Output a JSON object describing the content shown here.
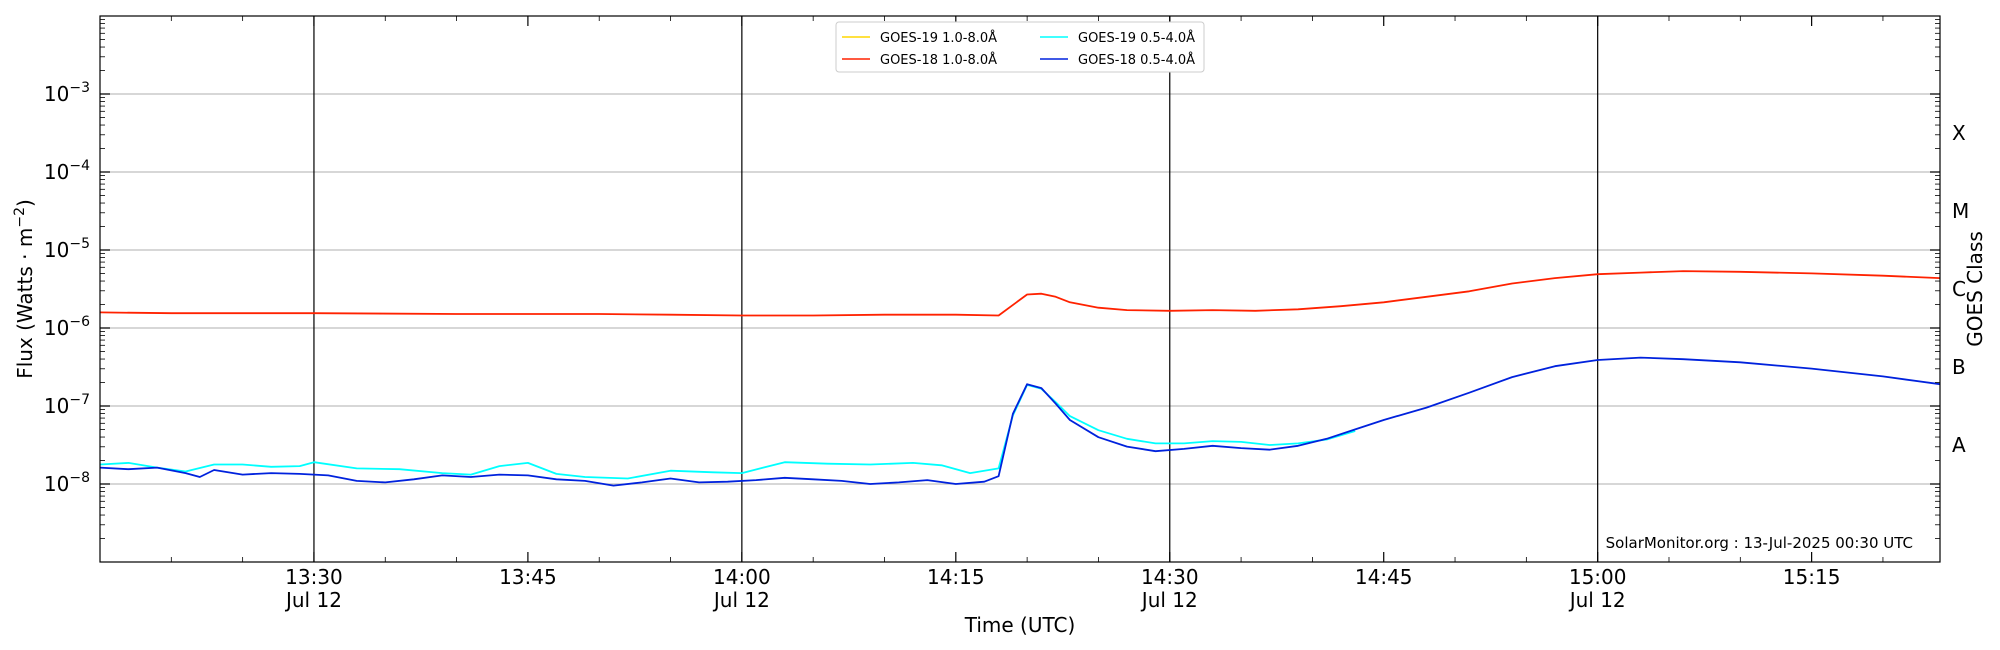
{
  "chart_data": {
    "type": "line",
    "xlabel": "Time (UTC)",
    "ylabel": "Flux (Watts · m",
    "ylabel_sup": "−2",
    "ylabel_close": ")",
    "right_label": "GOES Class",
    "xlim": [
      "13:15",
      "15:24"
    ],
    "ylim_log10": [
      -9,
      -2
    ],
    "yscale": "log",
    "yticks": [
      {
        "exp": -8,
        "base": "10",
        "sup": "−8"
      },
      {
        "exp": -7,
        "base": "10",
        "sup": "−7"
      },
      {
        "exp": -6,
        "base": "10",
        "sup": "−6"
      },
      {
        "exp": -5,
        "base": "10",
        "sup": "−5"
      },
      {
        "exp": -4,
        "base": "10",
        "sup": "−4"
      },
      {
        "exp": -3,
        "base": "10",
        "sup": "−3"
      }
    ],
    "xticks": [
      {
        "time": "13:30",
        "label": "13:30",
        "date": "Jul 12",
        "vline": true
      },
      {
        "time": "13:45",
        "label": "13:45",
        "date": "",
        "vline": false
      },
      {
        "time": "14:00",
        "label": "14:00",
        "date": "Jul 12",
        "vline": true
      },
      {
        "time": "14:15",
        "label": "14:15",
        "date": "",
        "vline": false
      },
      {
        "time": "14:30",
        "label": "14:30",
        "date": "Jul 12",
        "vline": true
      },
      {
        "time": "14:45",
        "label": "14:45",
        "date": "",
        "vline": false
      },
      {
        "time": "15:00",
        "label": "15:00",
        "date": "Jul 12",
        "vline": true
      },
      {
        "time": "15:15",
        "label": "15:15",
        "date": "",
        "vline": false
      }
    ],
    "class_labels": [
      {
        "label": "A",
        "exp": -7.5
      },
      {
        "label": "B",
        "exp": -6.5
      },
      {
        "label": "C",
        "exp": -5.5
      },
      {
        "label": "M",
        "exp": -4.5
      },
      {
        "label": "X",
        "exp": -3.5
      }
    ],
    "grid": "horizontal at decades",
    "legend_position": "top-center",
    "legend": [
      {
        "name": "GOES-19 1.0-8.0Å",
        "color": "#ffd700"
      },
      {
        "name": "GOES-19 0.5-4.0Å",
        "color": "#00ffff"
      },
      {
        "name": "GOES-18 1.0-8.0Å",
        "color": "#ff2200"
      },
      {
        "name": "GOES-18 0.5-4.0Å",
        "color": "#0022dd"
      }
    ],
    "series": [
      {
        "name": "GOES-19 1.0-8.0Å",
        "color": "#ffd700",
        "points": []
      },
      {
        "name": "GOES-19 0.5-4.0Å",
        "color": "#00ffff",
        "points": [
          [
            "13:15",
            -7.75
          ],
          [
            "13:17",
            -7.73
          ],
          [
            "13:19",
            -7.79
          ],
          [
            "13:21",
            -7.84
          ],
          [
            "13:23",
            -7.75
          ],
          [
            "13:25",
            -7.75
          ],
          [
            "13:27",
            -7.78
          ],
          [
            "13:29",
            -7.77
          ],
          [
            "13:30",
            -7.72
          ],
          [
            "13:33",
            -7.8
          ],
          [
            "13:36",
            -7.81
          ],
          [
            "13:39",
            -7.86
          ],
          [
            "13:41",
            -7.88
          ],
          [
            "13:43",
            -7.77
          ],
          [
            "13:45",
            -7.73
          ],
          [
            "13:47",
            -7.87
          ],
          [
            "13:49",
            -7.91
          ],
          [
            "13:52",
            -7.93
          ],
          [
            "13:55",
            -7.83
          ],
          [
            "13:58",
            -7.85
          ],
          [
            "14:00",
            -7.86
          ],
          [
            "14:03",
            -7.72
          ],
          [
            "14:06",
            -7.74
          ],
          [
            "14:09",
            -7.75
          ],
          [
            "14:12",
            -7.73
          ],
          [
            "14:14",
            -7.76
          ],
          [
            "14:16",
            -7.86
          ],
          [
            "14:18",
            -7.8
          ],
          [
            "14:19",
            -7.12
          ],
          [
            "14:20",
            -6.73
          ],
          [
            "14:21",
            -6.78
          ],
          [
            "14:22",
            -6.95
          ],
          [
            "14:23",
            -7.13
          ],
          [
            "14:25",
            -7.31
          ],
          [
            "14:27",
            -7.42
          ],
          [
            "14:29",
            -7.48
          ],
          [
            "14:31",
            -7.48
          ],
          [
            "14:33",
            -7.45
          ],
          [
            "14:35",
            -7.46
          ],
          [
            "14:37",
            -7.5
          ],
          [
            "14:39",
            -7.48
          ],
          [
            "14:41",
            -7.43
          ],
          [
            "14:43",
            -7.32
          ]
        ]
      },
      {
        "name": "GOES-18 1.0-8.0Å",
        "color": "#ff2200",
        "points": [
          [
            "13:15",
            -5.8
          ],
          [
            "13:20",
            -5.81
          ],
          [
            "13:30",
            -5.81
          ],
          [
            "13:40",
            -5.82
          ],
          [
            "13:50",
            -5.82
          ],
          [
            "13:55",
            -5.83
          ],
          [
            "14:00",
            -5.84
          ],
          [
            "14:05",
            -5.84
          ],
          [
            "14:10",
            -5.83
          ],
          [
            "14:15",
            -5.83
          ],
          [
            "14:18",
            -5.84
          ],
          [
            "14:20",
            -5.57
          ],
          [
            "14:21",
            -5.56
          ],
          [
            "14:22",
            -5.6
          ],
          [
            "14:23",
            -5.67
          ],
          [
            "14:25",
            -5.74
          ],
          [
            "14:27",
            -5.77
          ],
          [
            "14:30",
            -5.78
          ],
          [
            "14:33",
            -5.77
          ],
          [
            "14:36",
            -5.78
          ],
          [
            "14:39",
            -5.76
          ],
          [
            "14:42",
            -5.72
          ],
          [
            "14:45",
            -5.67
          ],
          [
            "14:48",
            -5.6
          ],
          [
            "14:51",
            -5.53
          ],
          [
            "14:54",
            -5.43
          ],
          [
            "14:57",
            -5.36
          ],
          [
            "15:00",
            -5.31
          ],
          [
            "15:03",
            -5.29
          ],
          [
            "15:06",
            -5.27
          ],
          [
            "15:10",
            -5.28
          ],
          [
            "15:15",
            -5.3
          ],
          [
            "15:20",
            -5.33
          ],
          [
            "15:24",
            -5.36
          ]
        ]
      },
      {
        "name": "GOES-18 0.5-4.0Å",
        "color": "#0022dd",
        "points": [
          [
            "13:15",
            -7.79
          ],
          [
            "13:17",
            -7.81
          ],
          [
            "13:19",
            -7.79
          ],
          [
            "13:21",
            -7.86
          ],
          [
            "13:22",
            -7.91
          ],
          [
            "13:23",
            -7.82
          ],
          [
            "13:25",
            -7.88
          ],
          [
            "13:27",
            -7.86
          ],
          [
            "13:29",
            -7.87
          ],
          [
            "13:31",
            -7.89
          ],
          [
            "13:33",
            -7.96
          ],
          [
            "13:35",
            -7.98
          ],
          [
            "13:37",
            -7.94
          ],
          [
            "13:39",
            -7.89
          ],
          [
            "13:41",
            -7.91
          ],
          [
            "13:43",
            -7.88
          ],
          [
            "13:45",
            -7.89
          ],
          [
            "13:47",
            -7.94
          ],
          [
            "13:49",
            -7.96
          ],
          [
            "13:51",
            -8.02
          ],
          [
            "13:53",
            -7.98
          ],
          [
            "13:55",
            -7.93
          ],
          [
            "13:57",
            -7.98
          ],
          [
            "13:59",
            -7.97
          ],
          [
            "14:01",
            -7.95
          ],
          [
            "14:03",
            -7.92
          ],
          [
            "14:05",
            -7.94
          ],
          [
            "14:07",
            -7.96
          ],
          [
            "14:09",
            -8.0
          ],
          [
            "14:11",
            -7.98
          ],
          [
            "14:13",
            -7.95
          ],
          [
            "14:15",
            -8.0
          ],
          [
            "14:17",
            -7.97
          ],
          [
            "14:18",
            -7.9
          ],
          [
            "14:19",
            -7.1
          ],
          [
            "14:20",
            -6.72
          ],
          [
            "14:21",
            -6.77
          ],
          [
            "14:22",
            -6.97
          ],
          [
            "14:23",
            -7.18
          ],
          [
            "14:25",
            -7.4
          ],
          [
            "14:27",
            -7.52
          ],
          [
            "14:29",
            -7.58
          ],
          [
            "14:31",
            -7.55
          ],
          [
            "14:33",
            -7.51
          ],
          [
            "14:35",
            -7.54
          ],
          [
            "14:37",
            -7.56
          ],
          [
            "14:39",
            -7.51
          ],
          [
            "14:41",
            -7.42
          ],
          [
            "14:43",
            -7.3
          ],
          [
            "14:45",
            -7.18
          ],
          [
            "14:48",
            -7.02
          ],
          [
            "14:51",
            -6.83
          ],
          [
            "14:54",
            -6.63
          ],
          [
            "14:57",
            -6.49
          ],
          [
            "15:00",
            -6.41
          ],
          [
            "15:03",
            -6.38
          ],
          [
            "15:06",
            -6.4
          ],
          [
            "15:10",
            -6.44
          ],
          [
            "15:15",
            -6.52
          ],
          [
            "15:20",
            -6.62
          ],
          [
            "15:24",
            -6.72
          ]
        ]
      }
    ],
    "watermark": "SolarMonitor.org : 13-Jul-2025 00:30 UTC"
  }
}
